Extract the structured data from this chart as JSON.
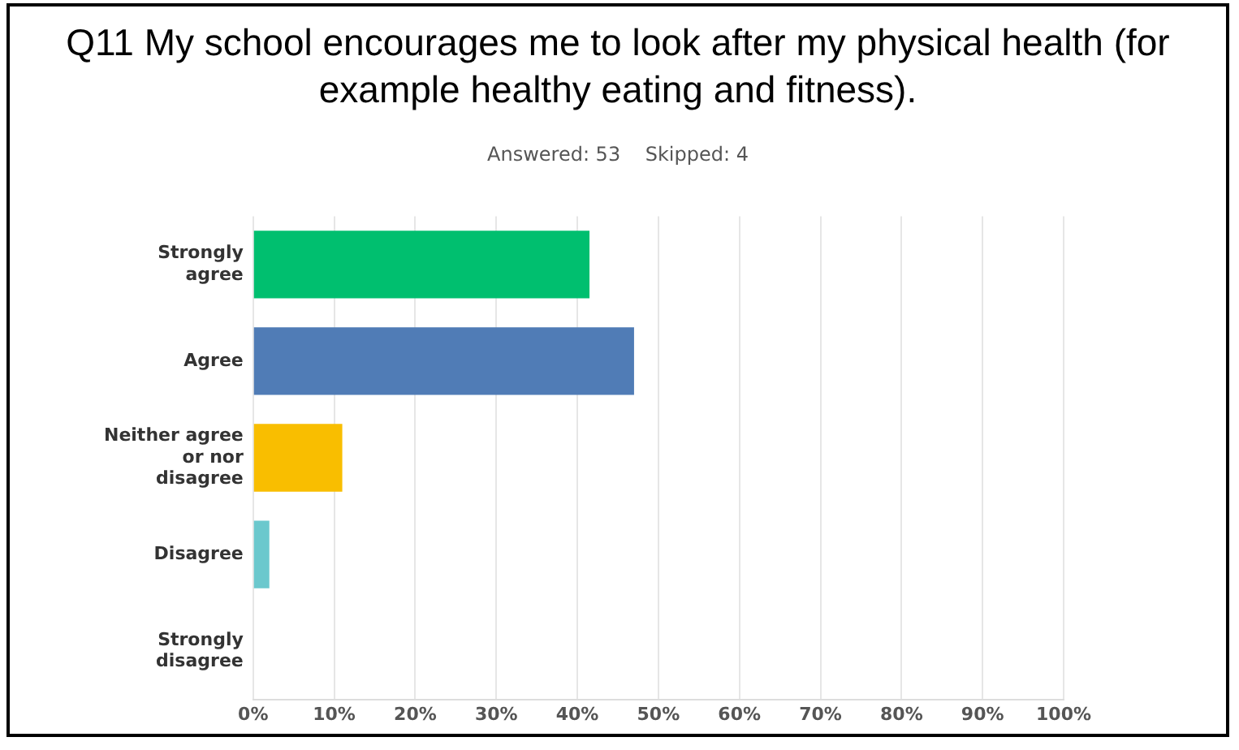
{
  "chart_data": {
    "type": "bar",
    "orientation": "horizontal",
    "title": "Q11 My school encourages me to look after my physical health (for example healthy eating and fitness).",
    "subtitle": "Answered: 53    Skipped: 4",
    "categories": [
      "Strongly agree",
      "Agree",
      "Neither agree or nor disagree",
      "Disagree",
      "Strongly disagree"
    ],
    "values": [
      41.5,
      47,
      11,
      2,
      0
    ],
    "colors": [
      "#00bf6f",
      "#507cb6",
      "#f9be00",
      "#6bc8cd",
      "#ff8b4f"
    ],
    "xlim": [
      0,
      100
    ],
    "xticks": [
      {
        "value": 0,
        "label": "0%"
      },
      {
        "value": 10,
        "label": "10%"
      },
      {
        "value": 20,
        "label": "20%"
      },
      {
        "value": 30,
        "label": "30%"
      },
      {
        "value": 40,
        "label": "40%"
      },
      {
        "value": 50,
        "label": "50%"
      },
      {
        "value": 60,
        "label": "60%"
      },
      {
        "value": 70,
        "label": "70%"
      },
      {
        "value": 80,
        "label": "80%"
      },
      {
        "value": 90,
        "label": "90%"
      },
      {
        "value": 100,
        "label": "100%"
      }
    ],
    "grid": "x",
    "legend": false
  }
}
